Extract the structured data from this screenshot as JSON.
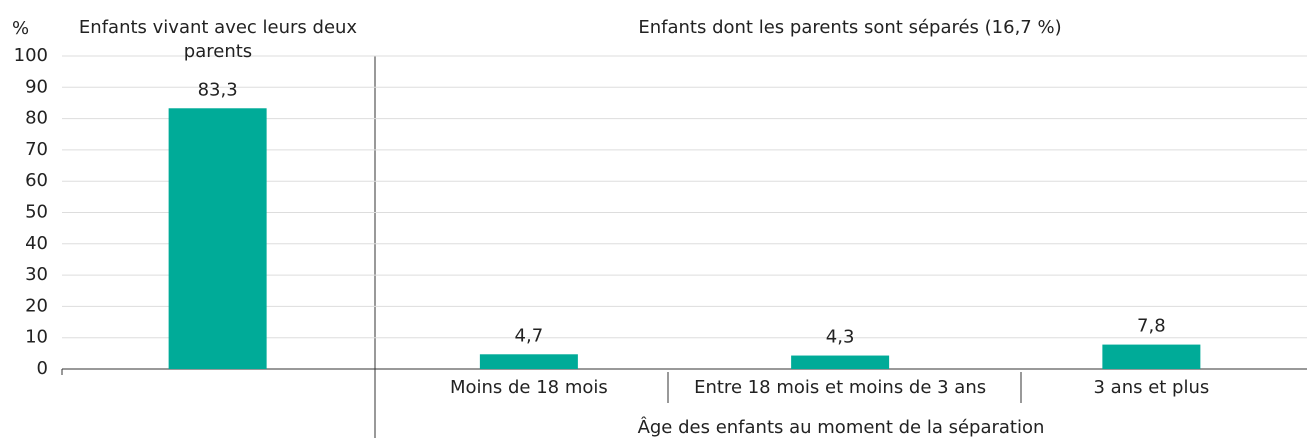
{
  "chart_data": {
    "type": "bar",
    "y_label": "%",
    "groups": [
      "Enfants vivant avec leurs deux parents",
      "Enfants dont les parents sont séparés (16,7 %)"
    ],
    "xlabel": "Âge des enfants au moment de la séparation",
    "categories": [
      null,
      "Moins de 18 mois",
      "Entre 18 mois et moins de 3 ans",
      "3 ans et plus"
    ],
    "values": [
      83.3,
      4.7,
      4.3,
      7.8
    ],
    "value_labels": [
      "83,3",
      "4,7",
      "4,3",
      "7,8"
    ],
    "color": "#00ab98",
    "ylim": [
      0,
      100
    ],
    "yticks": [
      0,
      10,
      20,
      30,
      40,
      50,
      60,
      70,
      80,
      90,
      100
    ],
    "grid": true
  }
}
